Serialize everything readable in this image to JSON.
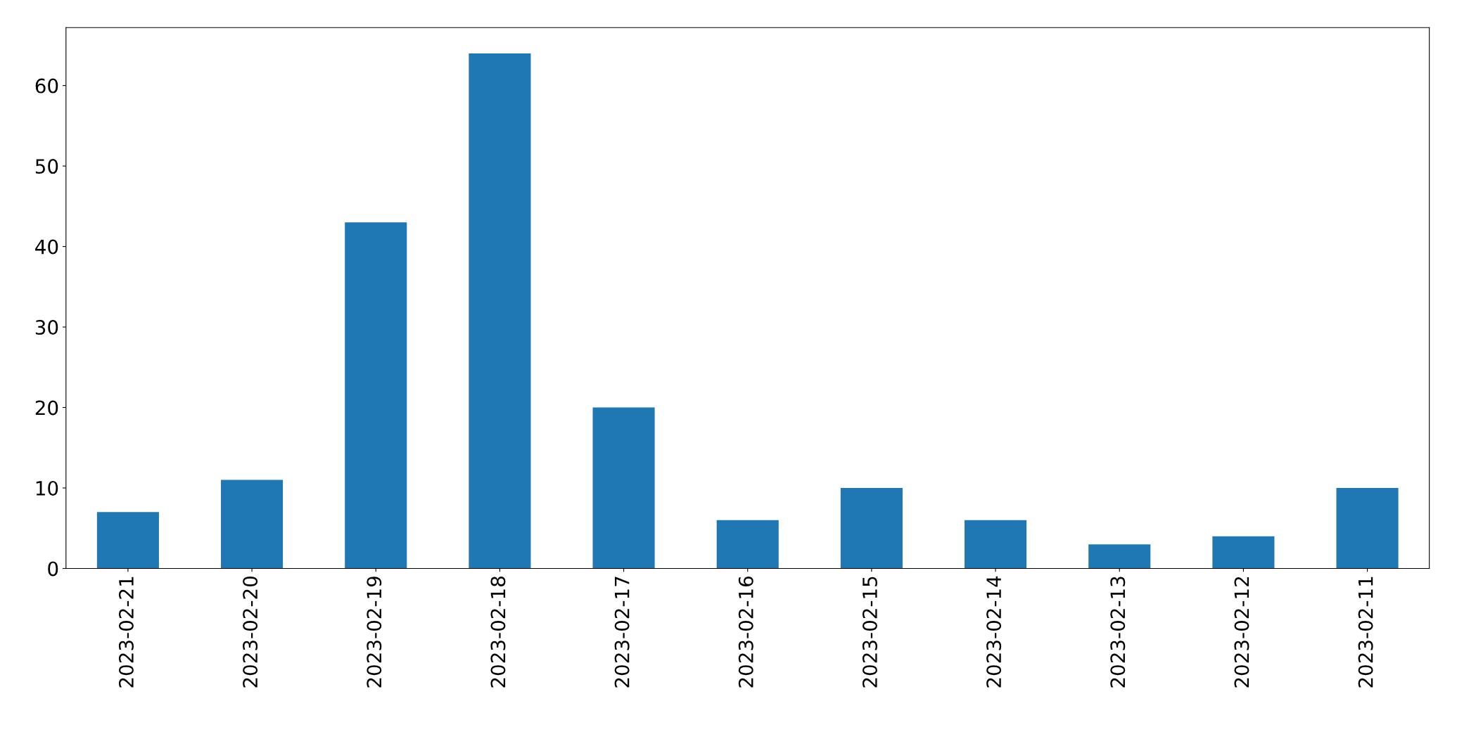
{
  "chart_data": {
    "type": "bar",
    "categories": [
      "2023-02-21",
      "2023-02-20",
      "2023-02-19",
      "2023-02-18",
      "2023-02-17",
      "2023-02-16",
      "2023-02-15",
      "2023-02-14",
      "2023-02-13",
      "2023-02-12",
      "2023-02-11"
    ],
    "values": [
      7,
      11,
      43,
      64,
      20,
      6,
      10,
      6,
      3,
      4,
      10
    ],
    "color": "#1f77b4",
    "ylim": [
      0,
      67.2
    ],
    "yticks": [
      0,
      10,
      20,
      30,
      40,
      50,
      60
    ],
    "grid": false,
    "legend": false
  }
}
